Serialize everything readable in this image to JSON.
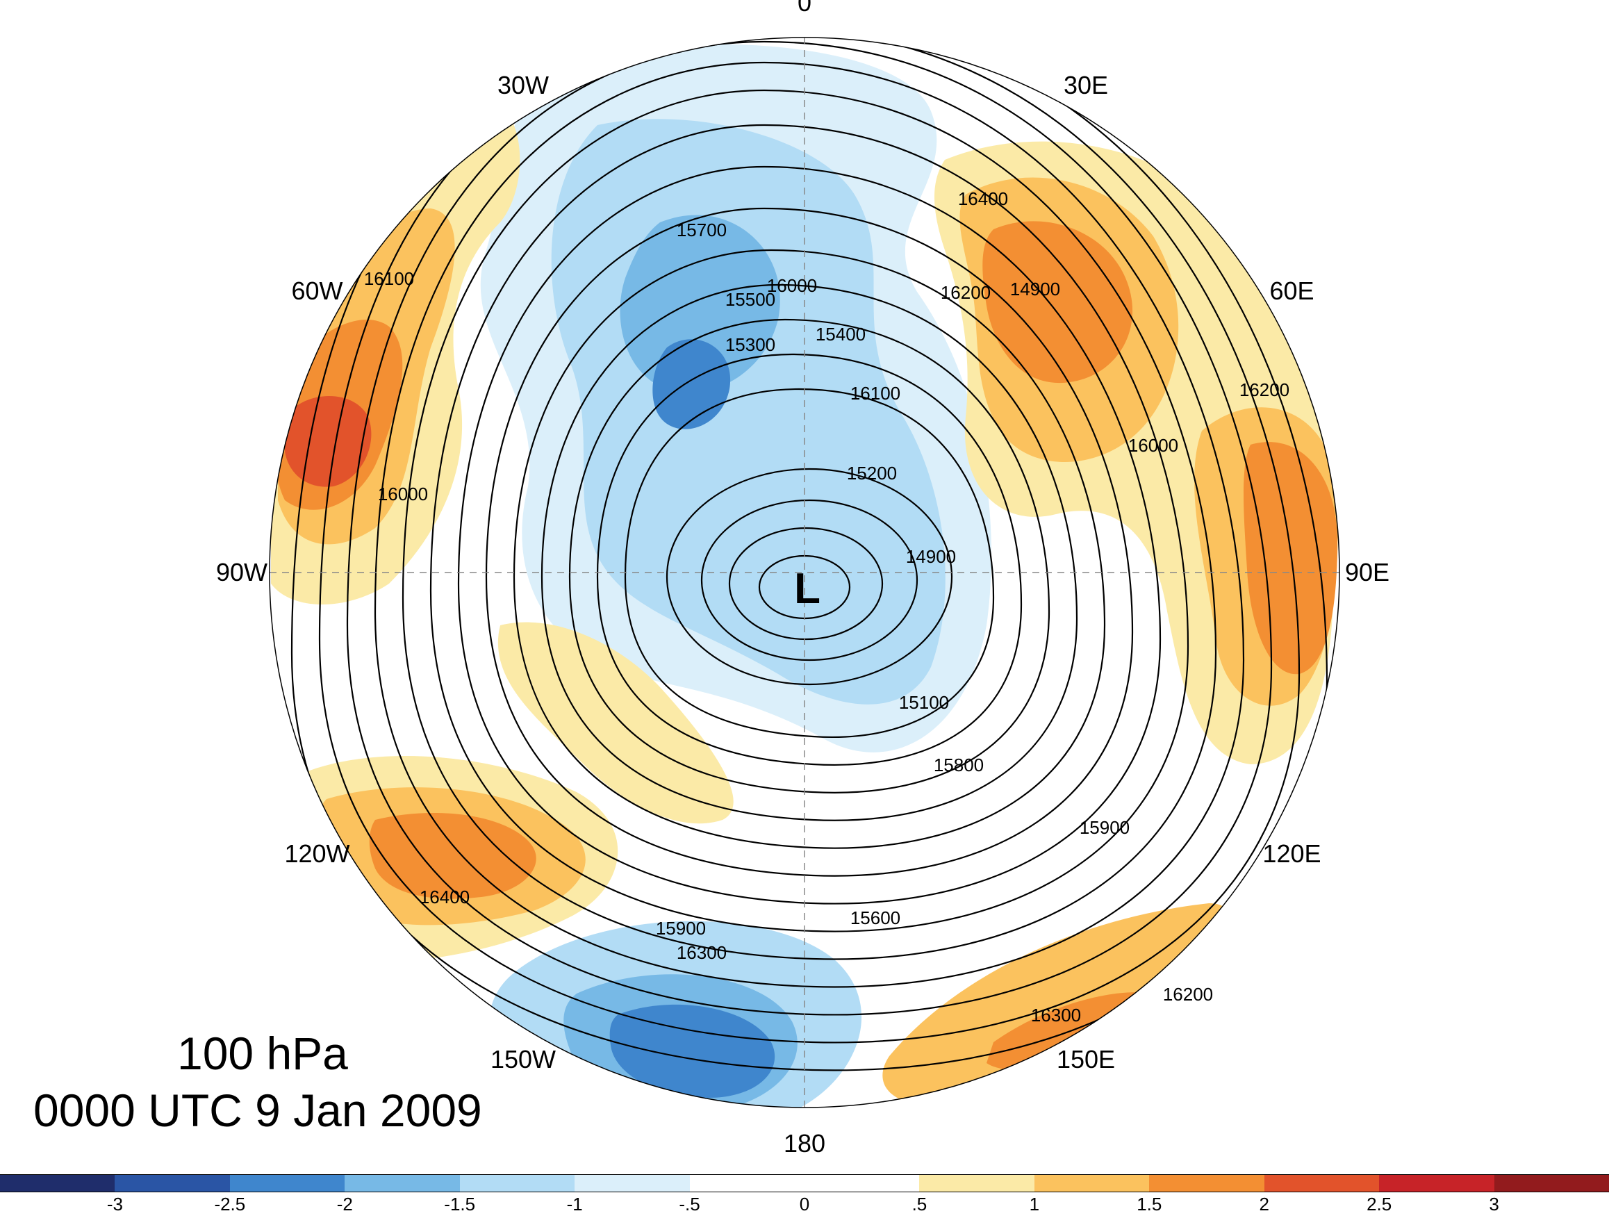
{
  "map": {
    "center_label": "L",
    "longitude_labels": [
      {
        "text": "180",
        "lon": 180
      },
      {
        "text": "150E",
        "lon": 150
      },
      {
        "text": "120E",
        "lon": 120
      },
      {
        "text": "90E",
        "lon": 90
      },
      {
        "text": "60E",
        "lon": 60
      },
      {
        "text": "30E",
        "lon": 30
      },
      {
        "text": "0",
        "lon": 0
      },
      {
        "text": "30W",
        "lon": -30
      },
      {
        "text": "60W",
        "lon": -60
      },
      {
        "text": "90W",
        "lon": -90
      },
      {
        "text": "120W",
        "lon": -120
      },
      {
        "text": "150W",
        "lon": -150
      }
    ],
    "contour_labels": [
      "14900",
      "15100",
      "15200",
      "15300",
      "15400",
      "15500",
      "15600",
      "15700",
      "15800",
      "15900",
      "16000",
      "16100",
      "16200",
      "16300",
      "16400"
    ]
  },
  "info": {
    "level": "100 hPa",
    "time": "0000 UTC 9 Jan 2009"
  },
  "colorbar": {
    "ticks": [
      "-3",
      "-2.5",
      "-2",
      "-1.5",
      "-1",
      "-.5",
      "0",
      ".5",
      "1",
      "1.5",
      "2",
      "2.5",
      "3"
    ],
    "colors": [
      "#1f2d6b",
      "#2a55a5",
      "#3f86cd",
      "#77b9e6",
      "#b2dcf5",
      "#dbeffa",
      "#ffffff",
      "#ffffff",
      "#fbeaa7",
      "#fbc25e",
      "#f38f33",
      "#e2532b",
      "#c72328",
      "#921b1d"
    ]
  }
}
